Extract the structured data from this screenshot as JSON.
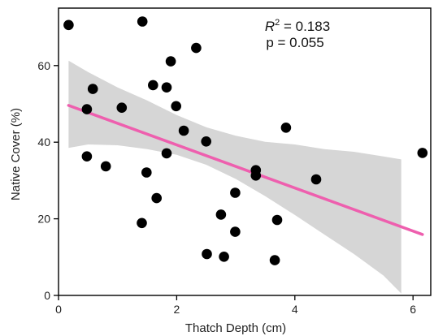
{
  "chart_data": {
    "type": "scatter",
    "xlabel": "Thatch Depth (cm)",
    "ylabel": "Native Cover (%)",
    "xlim": [
      0,
      6.3
    ],
    "ylim": [
      0,
      75
    ],
    "x_ticks": [
      0,
      2,
      4,
      6
    ],
    "y_ticks": [
      0,
      20,
      40,
      60
    ],
    "grid": false,
    "annotation": {
      "r2_symbol": "R",
      "r2_superscript": "2",
      "r2_value": " = 0.183",
      "p_text": "p = 0.055"
    },
    "points": [
      {
        "x": 0.17,
        "y": 70.6
      },
      {
        "x": 1.42,
        "y": 71.5
      },
      {
        "x": 2.33,
        "y": 64.6
      },
      {
        "x": 1.9,
        "y": 61.1
      },
      {
        "x": 0.58,
        "y": 53.9
      },
      {
        "x": 1.6,
        "y": 54.9
      },
      {
        "x": 1.83,
        "y": 54.3
      },
      {
        "x": 0.48,
        "y": 48.6
      },
      {
        "x": 1.07,
        "y": 49.0
      },
      {
        "x": 1.99,
        "y": 49.4
      },
      {
        "x": 2.12,
        "y": 43.0
      },
      {
        "x": 3.85,
        "y": 43.8
      },
      {
        "x": 2.5,
        "y": 40.2
      },
      {
        "x": 1.83,
        "y": 37.1
      },
      {
        "x": 0.48,
        "y": 36.3
      },
      {
        "x": 0.8,
        "y": 33.7
      },
      {
        "x": 1.49,
        "y": 32.1
      },
      {
        "x": 3.34,
        "y": 32.7
      },
      {
        "x": 3.34,
        "y": 31.3
      },
      {
        "x": 4.36,
        "y": 30.3
      },
      {
        "x": 6.16,
        "y": 37.2
      },
      {
        "x": 2.99,
        "y": 26.8
      },
      {
        "x": 1.66,
        "y": 25.4
      },
      {
        "x": 2.75,
        "y": 21.1
      },
      {
        "x": 3.7,
        "y": 19.7
      },
      {
        "x": 1.41,
        "y": 18.9
      },
      {
        "x": 2.99,
        "y": 16.6
      },
      {
        "x": 2.51,
        "y": 10.8
      },
      {
        "x": 2.8,
        "y": 10.1
      },
      {
        "x": 3.66,
        "y": 9.2
      }
    ],
    "fit_line": {
      "x": [
        0.17,
        6.16
      ],
      "y": [
        49.6,
        15.9
      ]
    },
    "confidence_band": {
      "x": [
        0.17,
        0.5,
        1.0,
        1.5,
        2.0,
        2.5,
        3.0,
        3.5,
        4.0,
        4.5,
        5.0,
        5.5,
        5.8
      ],
      "upper": [
        61.3,
        58.3,
        54.3,
        50.9,
        47.1,
        43.9,
        41.7,
        40.1,
        39.4,
        38.2,
        37.5,
        36.3,
        35.5
      ],
      "lower": [
        38.5,
        39.4,
        39.2,
        38.2,
        36.7,
        34.1,
        30.4,
        25.9,
        21.0,
        15.9,
        10.8,
        5.2,
        0.5
      ]
    },
    "colors": {
      "points": "#000000",
      "fit_line": "#ee5fae",
      "band": "#d6d6d6",
      "axis": "#000000"
    }
  }
}
